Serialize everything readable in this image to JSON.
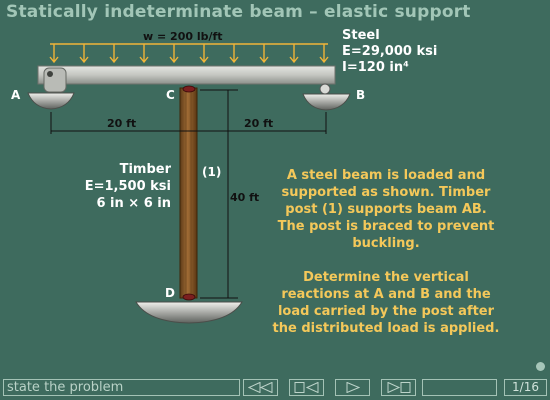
{
  "title": "Statically indeterminate beam – elastic support",
  "diagram": {
    "load_label": "w = 200 lb/ft",
    "steel": {
      "name": "Steel",
      "modulus": "E=29,000 ksi",
      "inertia": "I=120 in⁴"
    },
    "timber": {
      "name": "Timber",
      "modulus": "E=1,500 ksi",
      "size": "6 in × 6 in"
    },
    "post_id": "(1)",
    "points": {
      "a": "A",
      "b": "B",
      "c": "C",
      "d": "D"
    },
    "dims": {
      "left_span": "20 ft",
      "right_span": "20 ft",
      "post_height": "40 ft"
    }
  },
  "problem": {
    "paragraph1": "A steel beam is loaded and supported as shown. Timber post (1) supports beam AB.  The post is braced to prevent buckling.",
    "paragraph2": "Determine the vertical reactions at A and B and the load carried by the post after the distributed load is applied."
  },
  "navbar": {
    "state_label": "state the problem",
    "page_current": "1",
    "page_total": "16",
    "buttons": [
      "back-rewind",
      "back-step",
      "play",
      "forward-step"
    ]
  },
  "colors": {
    "background": "#3e6b5e",
    "title": "#a2c6b7",
    "problem_text": "#f4c85a",
    "load_arrows": "#f0b438",
    "beam": "#c9cac6",
    "post": "#8a5a2b"
  }
}
